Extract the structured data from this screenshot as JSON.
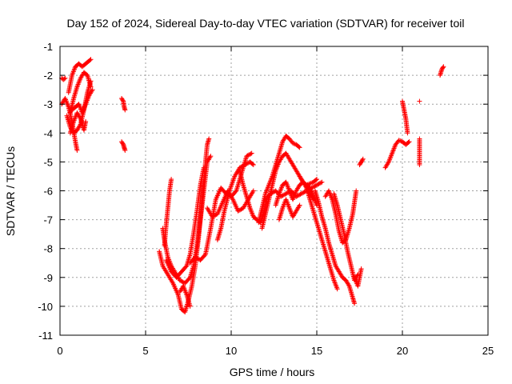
{
  "chart_data": {
    "type": "scatter",
    "title": "Day 152 of 2024, Sidereal Day-to-day VTEC variation (SDTVAR) for receiver toil",
    "xlabel": "GPS time / hours",
    "ylabel": "SDTVAR / TECUs",
    "xlim": [
      0,
      25
    ],
    "ylim": [
      -11,
      -1
    ],
    "xticks": [
      0,
      5,
      10,
      15,
      20,
      25
    ],
    "yticks": [
      -1,
      -2,
      -3,
      -4,
      -5,
      -6,
      -7,
      -8,
      -9,
      -10,
      -11
    ],
    "xtick_labels": [
      "0",
      "5",
      "10",
      "15",
      "20",
      "25"
    ],
    "ytick_labels": [
      "-1",
      "-2",
      "-3",
      "-4",
      "-5",
      "-6",
      "-7",
      "-8",
      "-9",
      "-10",
      "-11"
    ],
    "grid": true,
    "marker": "plus",
    "marker_color": "#ff0000",
    "series_tracks": [
      [
        [
          0.1,
          -2.1
        ],
        [
          0.2,
          -2.15
        ],
        [
          0.3,
          -2.1
        ]
      ],
      [
        [
          0.1,
          -3.0
        ],
        [
          0.3,
          -2.8
        ],
        [
          0.5,
          -3.1
        ],
        [
          0.7,
          -3.6
        ],
        [
          0.9,
          -4.3
        ],
        [
          1.0,
          -4.6
        ]
      ],
      [
        [
          0.4,
          -3.4
        ],
        [
          0.6,
          -3.8
        ],
        [
          0.8,
          -4.0
        ],
        [
          1.0,
          -3.9
        ],
        [
          1.2,
          -3.7
        ],
        [
          1.4,
          -3.2
        ],
        [
          1.6,
          -2.6
        ],
        [
          1.8,
          -2.2
        ]
      ],
      [
        [
          0.5,
          -2.6
        ],
        [
          0.7,
          -2.0
        ],
        [
          0.9,
          -1.7
        ],
        [
          1.1,
          -1.6
        ],
        [
          1.3,
          -1.7
        ],
        [
          1.5,
          -1.6
        ],
        [
          1.7,
          -1.5
        ],
        [
          1.8,
          -1.45
        ]
      ],
      [
        [
          0.6,
          -3.3
        ],
        [
          0.8,
          -2.8
        ],
        [
          1.0,
          -2.4
        ],
        [
          1.2,
          -2.1
        ],
        [
          1.4,
          -1.9
        ],
        [
          1.6,
          -2.0
        ],
        [
          1.8,
          -2.4
        ]
      ],
      [
        [
          0.7,
          -3.2
        ],
        [
          0.9,
          -3.1
        ],
        [
          1.1,
          -3.0
        ],
        [
          1.3,
          -3.3
        ],
        [
          1.5,
          -3.0
        ],
        [
          1.7,
          -2.7
        ],
        [
          1.9,
          -2.5
        ]
      ],
      [
        [
          0.6,
          -4.0
        ],
        [
          0.8,
          -3.6
        ],
        [
          1.0,
          -3.3
        ],
        [
          1.2,
          -3.5
        ],
        [
          1.4,
          -3.9
        ],
        [
          1.5,
          -3.6
        ]
      ],
      [
        [
          3.6,
          -2.8
        ],
        [
          3.7,
          -2.9
        ],
        [
          3.75,
          -3.1
        ],
        [
          3.8,
          -3.2
        ]
      ],
      [
        [
          3.6,
          -4.3
        ],
        [
          3.7,
          -4.4
        ],
        [
          3.75,
          -4.5
        ],
        [
          3.8,
          -4.6
        ]
      ],
      [
        [
          5.8,
          -8.1
        ],
        [
          6.0,
          -8.6
        ],
        [
          6.3,
          -8.9
        ],
        [
          6.6,
          -9.2
        ],
        [
          6.9,
          -9.6
        ],
        [
          7.1,
          -10.1
        ],
        [
          7.3,
          -10.2
        ],
        [
          7.5,
          -9.8
        ],
        [
          7.7,
          -9.3
        ],
        [
          7.9,
          -8.6
        ],
        [
          8.1,
          -7.6
        ],
        [
          8.3,
          -6.3
        ],
        [
          8.5,
          -5.0
        ],
        [
          8.6,
          -4.4
        ],
        [
          8.7,
          -4.2
        ]
      ],
      [
        [
          6.0,
          -7.3
        ],
        [
          6.1,
          -7.7
        ],
        [
          6.3,
          -8.3
        ],
        [
          6.5,
          -8.6
        ],
        [
          6.8,
          -8.9
        ],
        [
          7.0,
          -9.1
        ],
        [
          7.3,
          -9.2
        ],
        [
          7.6,
          -9.0
        ],
        [
          7.8,
          -8.6
        ],
        [
          8.0,
          -7.9
        ],
        [
          8.2,
          -7.0
        ],
        [
          8.4,
          -6.0
        ],
        [
          8.6,
          -5.0
        ],
        [
          8.8,
          -4.8
        ]
      ],
      [
        [
          6.1,
          -7.9
        ],
        [
          6.2,
          -7.2
        ],
        [
          6.3,
          -6.6
        ],
        [
          6.4,
          -6.0
        ],
        [
          6.5,
          -5.6
        ]
      ],
      [
        [
          6.2,
          -8.4
        ],
        [
          6.5,
          -8.8
        ],
        [
          6.8,
          -9.0
        ],
        [
          7.1,
          -8.8
        ],
        [
          7.4,
          -8.6
        ],
        [
          7.6,
          -8.2
        ],
        [
          7.8,
          -7.5
        ],
        [
          8.0,
          -6.7
        ],
        [
          8.2,
          -5.8
        ],
        [
          8.4,
          -5.2
        ]
      ],
      [
        [
          7.0,
          -9.5
        ],
        [
          7.2,
          -9.3
        ],
        [
          7.4,
          -9.6
        ],
        [
          7.6,
          -10.0
        ]
      ],
      [
        [
          7.6,
          -8.5
        ],
        [
          7.9,
          -8.3
        ],
        [
          8.2,
          -8.4
        ],
        [
          8.5,
          -8.2
        ],
        [
          8.8,
          -7.3
        ],
        [
          9.1,
          -6.3
        ],
        [
          9.4,
          -5.9
        ],
        [
          9.7,
          -6.1
        ],
        [
          10.0,
          -6.2
        ],
        [
          10.3,
          -6.0
        ],
        [
          10.6,
          -5.4
        ],
        [
          10.9,
          -4.8
        ],
        [
          11.2,
          -4.7
        ]
      ],
      [
        [
          8.6,
          -6.6
        ],
        [
          8.9,
          -6.9
        ],
        [
          9.2,
          -6.8
        ],
        [
          9.5,
          -6.4
        ],
        [
          9.8,
          -6.0
        ],
        [
          10.1,
          -6.3
        ],
        [
          10.4,
          -6.7
        ],
        [
          10.7,
          -6.6
        ],
        [
          11.0,
          -6.3
        ],
        [
          11.3,
          -6.0
        ]
      ],
      [
        [
          9.2,
          -7.7
        ],
        [
          9.4,
          -7.3
        ],
        [
          9.6,
          -6.7
        ],
        [
          9.9,
          -6.0
        ],
        [
          10.2,
          -5.5
        ],
        [
          10.5,
          -5.2
        ],
        [
          10.8,
          -5.1
        ],
        [
          11.1,
          -5.0
        ],
        [
          11.3,
          -5.1
        ]
      ],
      [
        [
          10.5,
          -5.3
        ],
        [
          10.7,
          -5.8
        ],
        [
          10.9,
          -6.2
        ],
        [
          11.1,
          -6.6
        ],
        [
          11.3,
          -6.9
        ],
        [
          11.5,
          -7.0
        ],
        [
          11.7,
          -7.1
        ],
        [
          11.9,
          -6.8
        ],
        [
          12.1,
          -6.3
        ]
      ],
      [
        [
          11.6,
          -7.1
        ],
        [
          11.8,
          -6.6
        ],
        [
          12.0,
          -6.1
        ],
        [
          12.2,
          -5.8
        ],
        [
          12.4,
          -5.5
        ],
        [
          12.6,
          -5.1
        ],
        [
          12.8,
          -4.7
        ],
        [
          13.0,
          -4.3
        ],
        [
          13.2,
          -4.1
        ],
        [
          13.4,
          -4.2
        ],
        [
          13.6,
          -4.35
        ],
        [
          13.8,
          -4.4
        ],
        [
          14.0,
          -4.5
        ]
      ],
      [
        [
          11.8,
          -7.3
        ],
        [
          12.0,
          -6.8
        ],
        [
          12.2,
          -6.3
        ],
        [
          12.4,
          -5.8
        ],
        [
          12.6,
          -5.3
        ],
        [
          12.8,
          -5.0
        ],
        [
          13.0,
          -4.8
        ],
        [
          13.2,
          -4.7
        ],
        [
          13.4,
          -4.9
        ],
        [
          13.6,
          -5.1
        ],
        [
          13.8,
          -5.3
        ],
        [
          14.0,
          -5.5
        ],
        [
          14.2,
          -5.7
        ],
        [
          14.4,
          -5.9
        ],
        [
          14.6,
          -6.1
        ],
        [
          14.8,
          -6.3
        ]
      ],
      [
        [
          12.0,
          -6.3
        ],
        [
          12.3,
          -6.1
        ],
        [
          12.6,
          -6.0
        ],
        [
          12.9,
          -6.2
        ],
        [
          13.2,
          -6.1
        ],
        [
          13.5,
          -6.0
        ],
        [
          13.8,
          -6.2
        ],
        [
          14.1,
          -6.1
        ],
        [
          14.4,
          -6.0
        ],
        [
          14.7,
          -5.9
        ],
        [
          15.0,
          -5.8
        ],
        [
          15.3,
          -5.7
        ]
      ],
      [
        [
          12.6,
          -6.5
        ],
        [
          12.8,
          -6.1
        ],
        [
          13.0,
          -5.8
        ],
        [
          13.2,
          -5.7
        ],
        [
          13.4,
          -6.0
        ],
        [
          13.6,
          -6.3
        ],
        [
          13.8,
          -6.0
        ],
        [
          14.0,
          -5.8
        ],
        [
          14.2,
          -5.7
        ],
        [
          14.4,
          -5.8
        ],
        [
          14.6,
          -5.9
        ],
        [
          14.8,
          -6.2
        ],
        [
          15.0,
          -6.5
        ]
      ],
      [
        [
          12.8,
          -7.0
        ],
        [
          13.0,
          -6.6
        ],
        [
          13.2,
          -6.3
        ],
        [
          13.4,
          -6.6
        ],
        [
          13.6,
          -6.9
        ],
        [
          13.8,
          -6.7
        ],
        [
          14.0,
          -6.5
        ]
      ],
      [
        [
          14.0,
          -5.5
        ],
        [
          14.2,
          -5.7
        ],
        [
          14.4,
          -5.8
        ],
        [
          14.6,
          -5.75
        ],
        [
          14.8,
          -5.7
        ],
        [
          15.0,
          -5.6
        ]
      ],
      [
        [
          14.4,
          -5.9
        ],
        [
          14.6,
          -6.3
        ],
        [
          14.8,
          -6.7
        ],
        [
          15.0,
          -7.1
        ],
        [
          15.2,
          -7.5
        ],
        [
          15.4,
          -7.9
        ],
        [
          15.6,
          -8.3
        ],
        [
          15.8,
          -8.7
        ],
        [
          16.0,
          -9.1
        ],
        [
          16.2,
          -9.4
        ]
      ],
      [
        [
          14.9,
          -6.0
        ],
        [
          15.1,
          -6.4
        ],
        [
          15.3,
          -6.9
        ],
        [
          15.5,
          -7.3
        ],
        [
          15.7,
          -7.8
        ],
        [
          15.9,
          -8.2
        ],
        [
          16.1,
          -8.6
        ],
        [
          16.3,
          -8.8
        ],
        [
          16.5,
          -9.0
        ],
        [
          16.7,
          -9.1
        ],
        [
          16.9,
          -9.3
        ],
        [
          17.1,
          -9.7
        ],
        [
          17.2,
          -9.9
        ]
      ],
      [
        [
          15.5,
          -6.2
        ],
        [
          15.7,
          -6.0
        ],
        [
          15.9,
          -6.3
        ],
        [
          16.1,
          -6.8
        ],
        [
          16.3,
          -7.4
        ],
        [
          16.5,
          -7.8
        ],
        [
          16.7,
          -7.7
        ],
        [
          16.9,
          -7.3
        ],
        [
          17.1,
          -6.8
        ],
        [
          17.2,
          -6.4
        ],
        [
          17.3,
          -6.0
        ]
      ],
      [
        [
          16.0,
          -6.1
        ],
        [
          16.2,
          -6.5
        ],
        [
          16.4,
          -7.0
        ],
        [
          16.6,
          -7.5
        ],
        [
          16.8,
          -8.1
        ],
        [
          17.0,
          -8.6
        ],
        [
          17.2,
          -9.1
        ],
        [
          17.4,
          -8.9
        ]
      ],
      [
        [
          17.2,
          -9.0
        ],
        [
          17.4,
          -9.3
        ],
        [
          17.6,
          -8.7
        ]
      ],
      [
        [
          17.5,
          -5.1
        ],
        [
          17.6,
          -5.0
        ],
        [
          17.7,
          -4.9
        ]
      ],
      [
        [
          19.0,
          -5.2
        ],
        [
          19.2,
          -5.0
        ],
        [
          19.4,
          -4.7
        ],
        [
          19.6,
          -4.4
        ],
        [
          19.8,
          -4.25
        ],
        [
          20.0,
          -4.3
        ],
        [
          20.2,
          -4.4
        ],
        [
          20.4,
          -4.3
        ]
      ],
      [
        [
          20.0,
          -2.9
        ],
        [
          20.1,
          -3.2
        ],
        [
          20.2,
          -3.5
        ],
        [
          20.3,
          -4.0
        ]
      ],
      [
        [
          21.0,
          -2.9
        ]
      ],
      [
        [
          21.0,
          -4.2
        ],
        [
          21.0,
          -4.6
        ],
        [
          21.0,
          -5.1
        ]
      ],
      [
        [
          22.2,
          -2.0
        ],
        [
          22.3,
          -1.8
        ],
        [
          22.4,
          -1.7
        ]
      ]
    ]
  }
}
